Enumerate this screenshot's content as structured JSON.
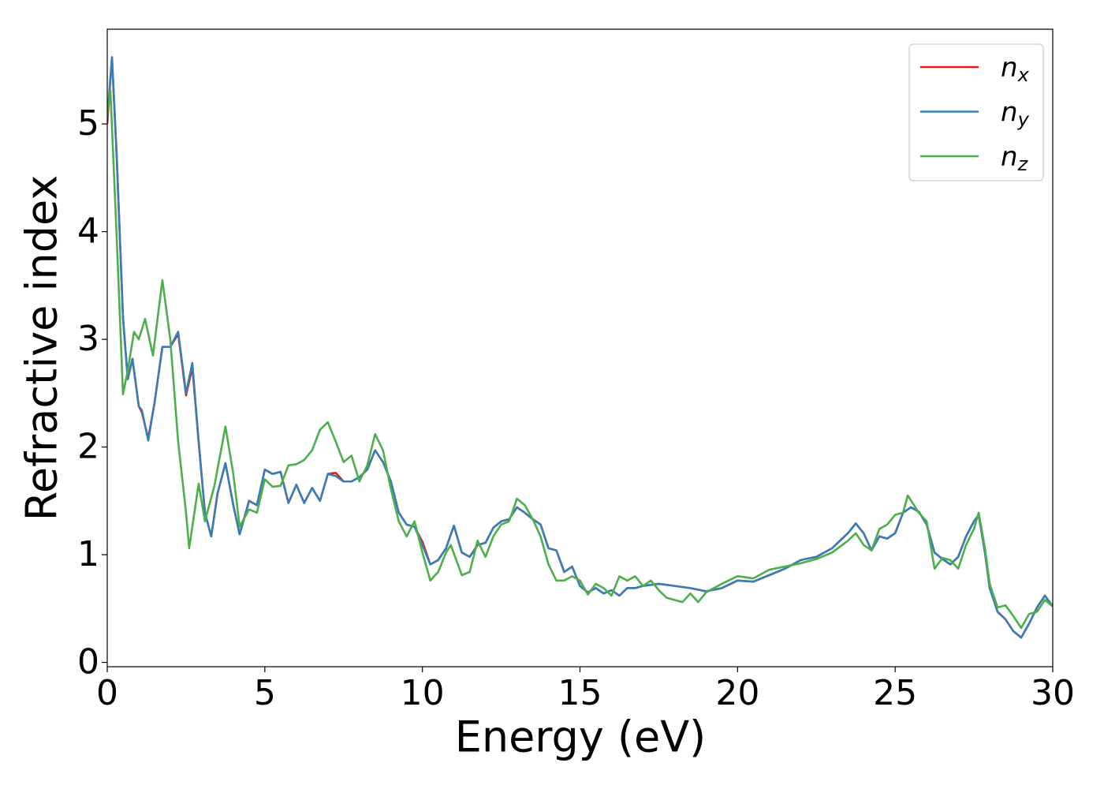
{
  "chart_data": {
    "type": "line",
    "x_label": "Energy (eV)",
    "y_label": "Refractive index",
    "xlim": [
      0,
      30
    ],
    "ylim": [
      -0.04,
      5.88
    ],
    "xticks": [
      0,
      5,
      10,
      15,
      20,
      25,
      30
    ],
    "yticks": [
      0,
      1,
      2,
      3,
      4,
      5
    ],
    "grid": false,
    "legend": "upper right",
    "series": [
      {
        "name": "nx",
        "color": "#e41a1c",
        "x": [
          0,
          0.15,
          0.3,
          0.5,
          0.65,
          0.8,
          1.0,
          1.1,
          1.3,
          1.5,
          1.75,
          2.0,
          2.25,
          2.5,
          2.7,
          2.9,
          3.1,
          3.3,
          3.5,
          3.75,
          4.0,
          4.2,
          4.5,
          4.75,
          5.0,
          5.25,
          5.5,
          5.75,
          6.0,
          6.25,
          6.5,
          6.75,
          7.0,
          7.25,
          7.5,
          7.75,
          8.0,
          8.25,
          8.5,
          8.75,
          9.0,
          9.25,
          9.5,
          9.75,
          10.0,
          10.25,
          10.5,
          10.75,
          11.0,
          11.25,
          11.5,
          11.75,
          12.0,
          12.25,
          12.5,
          12.75,
          13.0,
          13.25,
          13.5,
          13.75,
          14.0,
          14.25,
          14.5,
          14.75,
          15.0,
          15.25,
          15.5,
          15.75,
          16.0,
          16.25,
          16.5,
          16.75,
          17.0,
          17.5,
          18.0,
          18.5,
          19.0,
          19.5,
          20.0,
          20.5,
          21.0,
          21.5,
          22.0,
          22.5,
          23.0,
          23.5,
          23.75,
          24.0,
          24.25,
          24.5,
          24.75,
          25.0,
          25.25,
          25.5,
          25.75,
          26.0,
          26.25,
          26.5,
          26.75,
          27.0,
          27.25,
          27.5,
          27.65,
          27.85,
          28.0,
          28.25,
          28.5,
          28.75,
          29.0,
          29.25,
          29.5,
          29.75,
          30.0
        ],
        "values": [
          5.0,
          5.62,
          4.7,
          3.2,
          2.63,
          2.82,
          2.38,
          2.32,
          2.08,
          2.41,
          2.93,
          2.93,
          3.05,
          2.48,
          2.74,
          2.05,
          1.39,
          1.17,
          1.57,
          1.85,
          1.46,
          1.19,
          1.5,
          1.46,
          1.79,
          1.75,
          1.77,
          1.48,
          1.65,
          1.48,
          1.62,
          1.5,
          1.75,
          1.76,
          1.68,
          1.68,
          1.72,
          1.79,
          1.97,
          1.86,
          1.68,
          1.39,
          1.28,
          1.26,
          1.12,
          0.91,
          0.95,
          1.06,
          1.27,
          1.02,
          0.98,
          1.09,
          1.11,
          1.25,
          1.31,
          1.33,
          1.44,
          1.39,
          1.33,
          1.28,
          1.06,
          1.04,
          0.84,
          0.89,
          0.71,
          0.65,
          0.69,
          0.64,
          0.67,
          0.62,
          0.69,
          0.69,
          0.71,
          0.73,
          0.71,
          0.69,
          0.66,
          0.69,
          0.76,
          0.75,
          0.81,
          0.87,
          0.95,
          0.98,
          1.06,
          1.2,
          1.29,
          1.2,
          1.04,
          1.17,
          1.15,
          1.2,
          1.39,
          1.44,
          1.4,
          1.28,
          1.02,
          0.96,
          0.91,
          0.98,
          1.17,
          1.31,
          1.37,
          1.02,
          0.69,
          0.47,
          0.4,
          0.29,
          0.23,
          0.36,
          0.51,
          0.62,
          0.52
        ]
      },
      {
        "name": "ny",
        "color": "#377eb8",
        "x": [
          0,
          0.15,
          0.3,
          0.5,
          0.65,
          0.8,
          1.0,
          1.1,
          1.3,
          1.5,
          1.75,
          2.0,
          2.25,
          2.5,
          2.7,
          2.9,
          3.1,
          3.3,
          3.5,
          3.75,
          4.0,
          4.2,
          4.5,
          4.75,
          5.0,
          5.25,
          5.5,
          5.75,
          6.0,
          6.25,
          6.5,
          6.75,
          7.0,
          7.25,
          7.5,
          7.75,
          8.0,
          8.25,
          8.5,
          8.75,
          9.0,
          9.25,
          9.5,
          9.75,
          10.0,
          10.25,
          10.5,
          10.75,
          11.0,
          11.25,
          11.5,
          11.75,
          12.0,
          12.25,
          12.5,
          12.75,
          13.0,
          13.25,
          13.5,
          13.75,
          14.0,
          14.25,
          14.5,
          14.75,
          15.0,
          15.25,
          15.5,
          15.75,
          16.0,
          16.25,
          16.5,
          16.75,
          17.0,
          17.5,
          18.0,
          18.5,
          19.0,
          19.5,
          20.0,
          20.5,
          21.0,
          21.5,
          22.0,
          22.5,
          23.0,
          23.5,
          23.75,
          24.0,
          24.25,
          24.5,
          24.75,
          25.0,
          25.25,
          25.5,
          25.75,
          26.0,
          26.25,
          26.5,
          26.75,
          27.0,
          27.25,
          27.5,
          27.65,
          27.85,
          28.0,
          28.25,
          28.5,
          28.75,
          29.0,
          29.25,
          29.5,
          29.75,
          30.0
        ],
        "values": [
          5.05,
          5.62,
          4.7,
          3.2,
          2.63,
          2.82,
          2.38,
          2.34,
          2.06,
          2.41,
          2.93,
          2.93,
          3.07,
          2.5,
          2.78,
          2.05,
          1.39,
          1.17,
          1.57,
          1.85,
          1.46,
          1.19,
          1.5,
          1.46,
          1.79,
          1.75,
          1.77,
          1.48,
          1.65,
          1.48,
          1.62,
          1.5,
          1.75,
          1.73,
          1.68,
          1.68,
          1.72,
          1.79,
          1.97,
          1.86,
          1.68,
          1.39,
          1.28,
          1.26,
          1.09,
          0.91,
          0.95,
          1.06,
          1.27,
          1.02,
          0.98,
          1.09,
          1.11,
          1.25,
          1.31,
          1.33,
          1.44,
          1.39,
          1.33,
          1.28,
          1.06,
          1.04,
          0.84,
          0.89,
          0.71,
          0.65,
          0.69,
          0.64,
          0.67,
          0.62,
          0.69,
          0.69,
          0.71,
          0.73,
          0.71,
          0.69,
          0.66,
          0.69,
          0.76,
          0.75,
          0.81,
          0.87,
          0.95,
          0.98,
          1.06,
          1.2,
          1.29,
          1.2,
          1.04,
          1.17,
          1.15,
          1.2,
          1.39,
          1.44,
          1.4,
          1.28,
          1.02,
          0.96,
          0.91,
          0.98,
          1.17,
          1.31,
          1.37,
          1.02,
          0.69,
          0.47,
          0.4,
          0.29,
          0.23,
          0.36,
          0.51,
          0.62,
          0.52
        ]
      },
      {
        "name": "nz",
        "color": "#4daf4a",
        "x": [
          0,
          0.1,
          0.3,
          0.5,
          0.65,
          0.85,
          1.0,
          1.2,
          1.45,
          1.75,
          2.0,
          2.25,
          2.5,
          2.6,
          2.9,
          3.1,
          3.4,
          3.75,
          4.0,
          4.2,
          4.5,
          4.75,
          5.0,
          5.25,
          5.5,
          5.75,
          6.0,
          6.25,
          6.5,
          6.75,
          7.0,
          7.25,
          7.5,
          7.75,
          8.0,
          8.25,
          8.5,
          8.75,
          9.0,
          9.25,
          9.5,
          9.75,
          10.0,
          10.25,
          10.5,
          10.75,
          10.9,
          11.25,
          11.5,
          11.75,
          12.0,
          12.25,
          12.5,
          12.75,
          13.0,
          13.25,
          13.5,
          13.75,
          14.0,
          14.25,
          14.5,
          14.75,
          15.0,
          15.25,
          15.5,
          15.75,
          16.0,
          16.25,
          16.5,
          16.75,
          17.0,
          17.25,
          17.5,
          17.75,
          18.0,
          18.25,
          18.5,
          18.75,
          19.0,
          19.5,
          20.0,
          20.5,
          21.0,
          21.5,
          22.0,
          22.5,
          23.0,
          23.5,
          23.75,
          24.0,
          24.25,
          24.5,
          24.75,
          25.0,
          25.25,
          25.4,
          25.75,
          26.0,
          26.25,
          26.5,
          26.75,
          27.0,
          27.25,
          27.5,
          27.65,
          27.85,
          28.0,
          28.25,
          28.5,
          28.75,
          29.0,
          29.25,
          29.5,
          29.75,
          30.0
        ],
        "values": [
          5.09,
          5.31,
          3.95,
          2.49,
          2.71,
          3.07,
          3.0,
          3.19,
          2.85,
          3.55,
          3.0,
          2.05,
          1.39,
          1.06,
          1.66,
          1.31,
          1.64,
          2.19,
          1.75,
          1.26,
          1.42,
          1.39,
          1.7,
          1.63,
          1.64,
          1.83,
          1.84,
          1.88,
          1.97,
          2.16,
          2.23,
          2.05,
          1.86,
          1.92,
          1.68,
          1.83,
          2.12,
          1.97,
          1.61,
          1.31,
          1.17,
          1.31,
          1.02,
          0.76,
          0.84,
          1.02,
          1.09,
          0.81,
          0.84,
          1.13,
          0.98,
          1.17,
          1.28,
          1.31,
          1.52,
          1.46,
          1.33,
          1.17,
          0.91,
          0.76,
          0.76,
          0.8,
          0.76,
          0.63,
          0.73,
          0.69,
          0.62,
          0.8,
          0.76,
          0.8,
          0.71,
          0.76,
          0.67,
          0.6,
          0.58,
          0.56,
          0.64,
          0.56,
          0.65,
          0.73,
          0.8,
          0.78,
          0.86,
          0.89,
          0.92,
          0.96,
          1.02,
          1.13,
          1.2,
          1.09,
          1.04,
          1.24,
          1.28,
          1.37,
          1.39,
          1.55,
          1.39,
          1.31,
          0.87,
          0.97,
          0.95,
          0.87,
          1.09,
          1.24,
          1.39,
          1.06,
          0.73,
          0.51,
          0.53,
          0.43,
          0.32,
          0.45,
          0.47,
          0.58,
          0.52
        ]
      }
    ]
  }
}
